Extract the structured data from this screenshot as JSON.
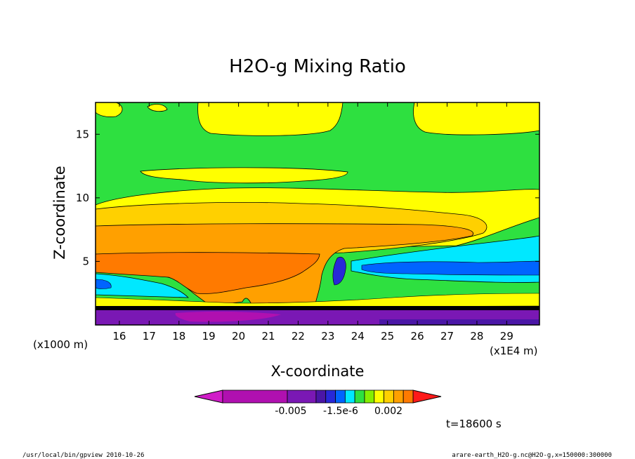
{
  "chart_data": {
    "type": "heatmap",
    "title": "H2O-g Mixing Ratio",
    "xlabel": "X-coordinate",
    "ylabel": "Z-coordinate",
    "x_unit_label": "(x1E4 m)",
    "y_unit_label": "(x1000 m)",
    "xlim": [
      15.2,
      30.1
    ],
    "ylim": [
      0,
      17.5
    ],
    "x_ticks": [
      "16",
      "17",
      "18",
      "19",
      "20",
      "21",
      "22",
      "23",
      "24",
      "25",
      "26",
      "27",
      "28",
      "29"
    ],
    "y_ticks": [
      "5",
      "10",
      "15"
    ],
    "colorbar": {
      "labels": [
        "-0.005",
        "-1.5e-6",
        "0.002"
      ],
      "colors": [
        "#d01cc8",
        "#b010b0",
        "#7a18b4",
        "#4a16a6",
        "#2828d8",
        "#0064ff",
        "#00e8ff",
        "#2ee040",
        "#86ee00",
        "#ffff00",
        "#ffd000",
        "#ffa000",
        "#ff7a00",
        "#ff1a1a"
      ]
    },
    "annotation_time": "t=18600 s",
    "footer_left": "/usr/local/bin/gpview  2010-10-26",
    "footer_right": "arare-earth_H2O-g.nc@H2O-g,x=150000:300000",
    "regions": [
      {
        "level": "green",
        "color": "#2ee040",
        "z_range": [
          10.5,
          17.5
        ]
      },
      {
        "level": "yellow",
        "color": "#ffff00",
        "z_range": [
          9.0,
          12.5
        ]
      },
      {
        "level": "light-orange",
        "color": "#ffd000",
        "z_range": [
          6.0,
          9.3
        ]
      },
      {
        "level": "orange",
        "color": "#ffa000",
        "z_range": [
          1.5,
          8.0
        ]
      },
      {
        "level": "dark-orange",
        "color": "#ff7a00",
        "z_range": [
          3.0,
          7.0
        ]
      },
      {
        "level": "cyan",
        "color": "#00e8ff",
        "z_range": [
          3.5,
          6.3
        ]
      },
      {
        "level": "purple",
        "color": "#7a18b4",
        "z_range": [
          0,
          1.5
        ]
      }
    ]
  }
}
